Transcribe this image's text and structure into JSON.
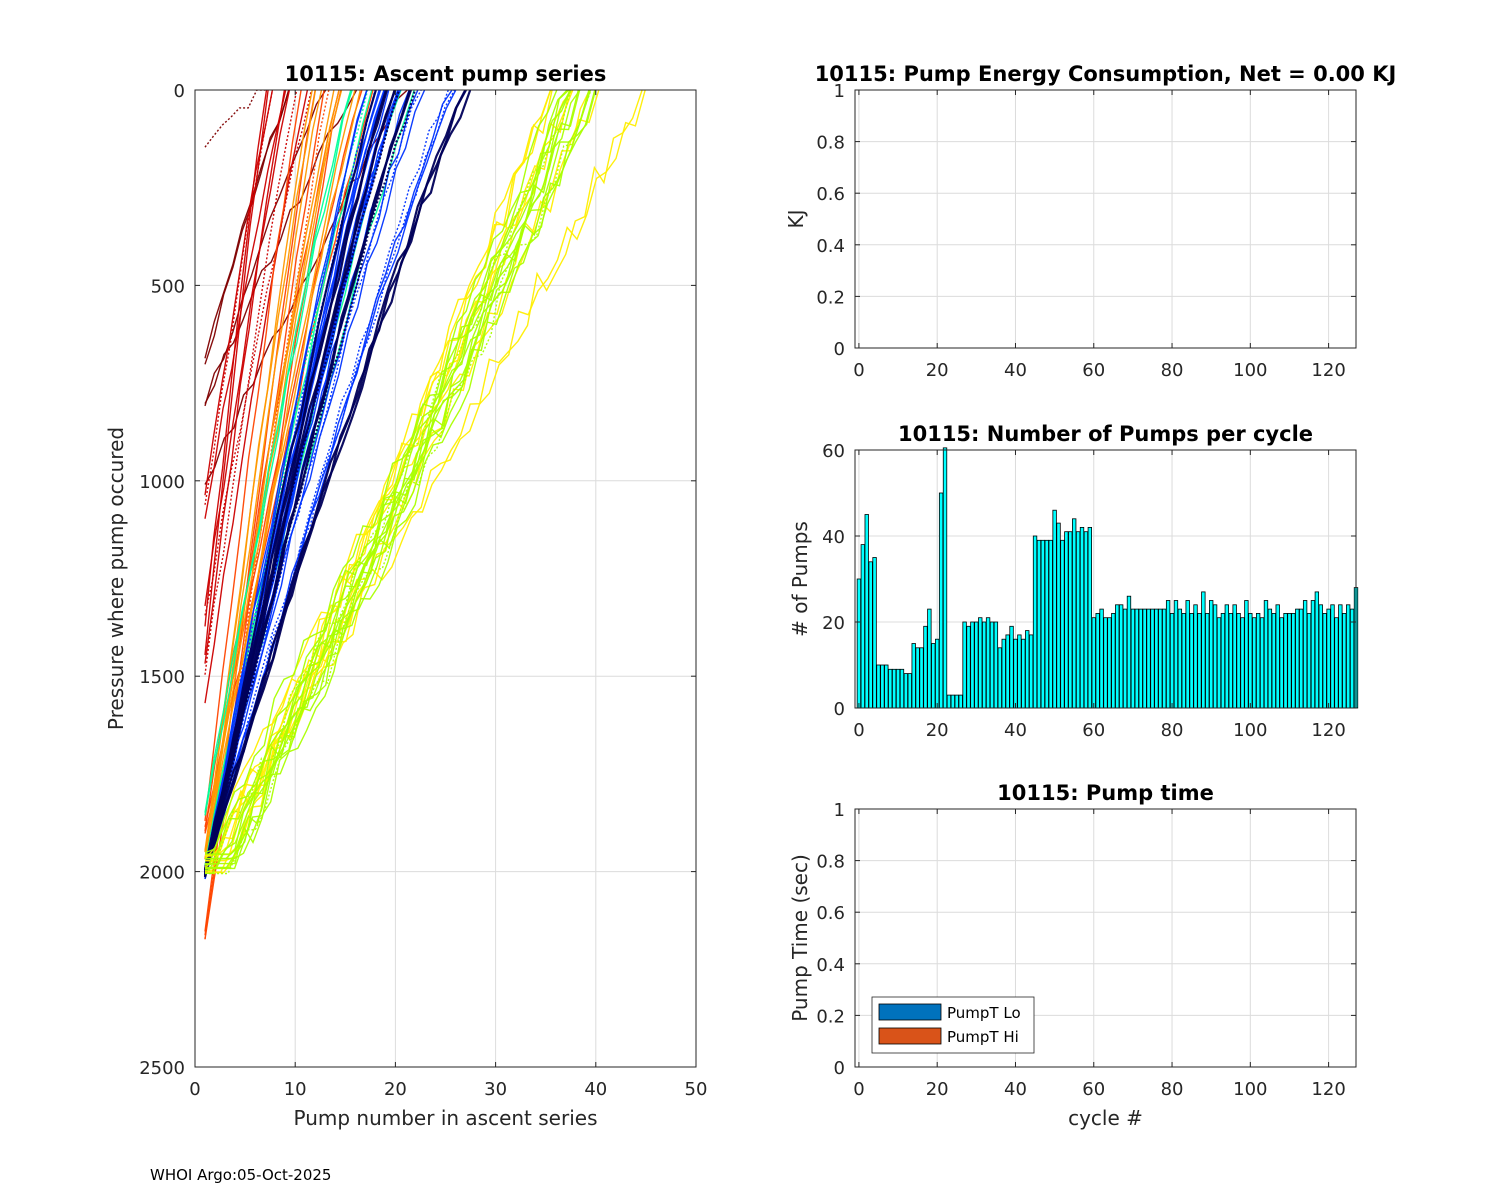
{
  "footer": "WHOI Argo:05-Oct-2025",
  "colors": {
    "grid": "#dcdcdc",
    "axis": "#262626",
    "bar_fill": "#00ffff",
    "legend_lo": "#0072bd",
    "legend_hi": "#d95319"
  },
  "chart_data": [
    {
      "id": "ascent",
      "type": "line",
      "title": "10115: Ascent pump series",
      "xlabel": "Pump number in ascent series",
      "ylabel": "Pressure where pump occured",
      "xlim": [
        0,
        50
      ],
      "ylim": [
        0,
        2500
      ],
      "y_reversed": true,
      "xticks": [
        0,
        10,
        20,
        30,
        40,
        50
      ],
      "yticks": [
        0,
        500,
        1000,
        1500,
        2000,
        2500
      ],
      "grid": true,
      "colormap": "jet",
      "series_groups": [
        {
          "name": "dark red (early cycles, shallow start)",
          "color": "#800000",
          "count": 6,
          "start_pressures": [
            148,
            690,
            705,
            800,
            800,
            1000
          ],
          "end_pump": [
            8,
            9,
            10,
            13,
            16,
            22
          ]
        },
        {
          "name": "red",
          "color": "#cc0000",
          "count": 10,
          "start_pressures": [
            1040,
            1060,
            1100,
            1320,
            1350,
            1380,
            1440,
            1460,
            1500,
            1560
          ],
          "end_pump": [
            7,
            8,
            9,
            10,
            12
          ]
        },
        {
          "name": "orange-red (deep start)",
          "color": "#ff4500",
          "count": 8,
          "start_pressures": [
            2160,
            2165,
            1900,
            1880,
            1870
          ],
          "end_pump": [
            11,
            13,
            15,
            17
          ]
        },
        {
          "name": "orange",
          "color": "#ff9900",
          "count": 8,
          "start_pressures": [
            1990,
            1980,
            1970,
            1950
          ],
          "end_pump": [
            12,
            14,
            16
          ]
        },
        {
          "name": "cyan-green",
          "color": "#00ff99",
          "count": 6,
          "start_pressures": [
            1850,
            1990,
            2000
          ],
          "end_pump": [
            15,
            17,
            21
          ]
        },
        {
          "name": "blue",
          "color": "#0033ff",
          "count": 25,
          "start_pressures": [
            2000,
            2005,
            2010
          ],
          "end_pump": [
            18,
            19,
            20,
            21,
            22,
            26
          ]
        },
        {
          "name": "navy",
          "color": "#00005a",
          "count": 12,
          "start_pressures": [
            2000,
            2005,
            2008
          ],
          "end_pump": [
            19,
            20,
            21,
            27
          ]
        },
        {
          "name": "yellow",
          "color": "#ffee00",
          "count": 10,
          "start_pressures": [
            1960,
            1980,
            2000
          ],
          "end_pump": [
            36,
            38,
            40,
            45
          ]
        },
        {
          "name": "yellow-green",
          "color": "#aaff00",
          "count": 14,
          "start_pressures": [
            1960,
            1980,
            1995,
            2000
          ],
          "end_pump": [
            37,
            38,
            39,
            40
          ]
        }
      ]
    },
    {
      "id": "energy",
      "type": "bar",
      "title": "10115: Pump Energy Consumption,  Net =   0.00 KJ",
      "xlabel": "",
      "ylabel": "KJ",
      "xlim": [
        -1,
        127
      ],
      "ylim": [
        0,
        1
      ],
      "xticks": [
        0,
        20,
        40,
        60,
        80,
        100,
        120
      ],
      "yticks": [
        0,
        0.2,
        0.4,
        0.6,
        0.8,
        1
      ],
      "ytick_labels": [
        "0",
        "0.2",
        "0.4",
        "0.6",
        "0.8",
        "1"
      ],
      "grid": true,
      "values": []
    },
    {
      "id": "pumps",
      "type": "bar",
      "title": "10115: Number of Pumps per cycle",
      "xlabel": "",
      "ylabel": "# of Pumps",
      "xlim": [
        -1,
        127
      ],
      "ylim": [
        0,
        60
      ],
      "xticks": [
        0,
        20,
        40,
        60,
        80,
        100,
        120
      ],
      "yticks": [
        0,
        20,
        40,
        60
      ],
      "grid": true,
      "categories_start": 0,
      "values": [
        30,
        38,
        45,
        34,
        35,
        10,
        10,
        10,
        9,
        9,
        9,
        9,
        8,
        8,
        15,
        14,
        14,
        19,
        23,
        15,
        16,
        50,
        61,
        3,
        3,
        3,
        3,
        20,
        19,
        20,
        20,
        21,
        20,
        21,
        20,
        20,
        14,
        16,
        17,
        19,
        16,
        17,
        16,
        18,
        17,
        40,
        39,
        39,
        39,
        39,
        46,
        43,
        39,
        41,
        41,
        44,
        41,
        42,
        41,
        42,
        21,
        22,
        23,
        21,
        21,
        22,
        24,
        24,
        23,
        26,
        23,
        23,
        23,
        23,
        23,
        23,
        23,
        23,
        23,
        25,
        22,
        25,
        23,
        22,
        25,
        22,
        24,
        22,
        27,
        22,
        25,
        24,
        21,
        22,
        24,
        22,
        24,
        22,
        21,
        25,
        22,
        21,
        22,
        21,
        25,
        23,
        22,
        24,
        21,
        22,
        22,
        22,
        23,
        23,
        25,
        22,
        25,
        27,
        24,
        22,
        23,
        24,
        21,
        24,
        22,
        24,
        23,
        28
      ]
    },
    {
      "id": "pumptime",
      "type": "bar",
      "title": "10115: Pump time",
      "xlabel": "cycle #",
      "ylabel": "Pump Time (sec)",
      "xlim": [
        -1,
        127
      ],
      "ylim": [
        0,
        1
      ],
      "xticks": [
        0,
        20,
        40,
        60,
        80,
        100,
        120
      ],
      "yticks": [
        0,
        0.2,
        0.4,
        0.6,
        0.8,
        1
      ],
      "ytick_labels": [
        "0",
        "0.2",
        "0.4",
        "0.6",
        "0.8",
        "1"
      ],
      "grid": true,
      "legend": [
        "PumpT Lo",
        "PumpT Hi"
      ],
      "legend_position": "bottom-left",
      "series": [
        {
          "name": "PumpT Lo",
          "values": []
        },
        {
          "name": "PumpT Hi",
          "values": []
        }
      ]
    }
  ]
}
